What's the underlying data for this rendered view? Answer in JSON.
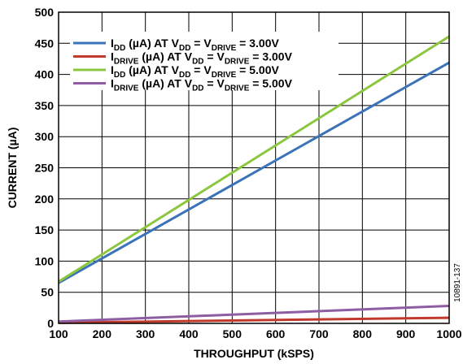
{
  "chart_data": {
    "type": "line",
    "xlabel": "THROUGHPUT (kSPS)",
    "ylabel": "CURRENT (µA)",
    "xlim": [
      100,
      1000
    ],
    "ylim": [
      0,
      500
    ],
    "x_ticks": [
      "100",
      "200",
      "300",
      "400",
      "500",
      "600",
      "700",
      "800",
      "900",
      "1000"
    ],
    "y_ticks": [
      "0",
      "50",
      "100",
      "150",
      "200",
      "250",
      "300",
      "350",
      "400",
      "450",
      "500"
    ],
    "grid": true,
    "legend_position": "top-left",
    "figure_id": "10891-137",
    "series": [
      {
        "name": "IDD (µA) AT VDD = VDRIVE = 3.00V",
        "legend": {
          "t1": "I",
          "s1": "DD",
          "t2": " (µA) AT V",
          "s2": "DD",
          "t3": " = V",
          "s3": "DRIVE",
          "t4": " = 3.00V"
        },
        "color": "#3b73b9",
        "x": [
          100,
          1000
        ],
        "y": [
          65,
          419
        ]
      },
      {
        "name": "IDRIVE (µA) AT VDD = VDRIVE = 3.00V",
        "legend": {
          "t1": "I",
          "s1": "DRIVE",
          "t2": " (µA) AT V",
          "s2": "DD",
          "t3": " = V",
          "s3": "DRIVE",
          "t4": " = 3.00V"
        },
        "color": "#c0392b",
        "x": [
          100,
          1000
        ],
        "y": [
          1,
          9
        ]
      },
      {
        "name": "IDD (µA) AT VDD = VDRIVE = 5.00V",
        "legend": {
          "t1": "I",
          "s1": "DD",
          "t2": " (µA) AT V",
          "s2": "DD",
          "t3": " = V",
          "s3": "DRIVE",
          "t4": " = 5.00V"
        },
        "color": "#8cc63f",
        "x": [
          100,
          1000
        ],
        "y": [
          67,
          461
        ]
      },
      {
        "name": "IDRIVE (µA) AT VDD = VDRIVE = 5.00V",
        "legend": {
          "t1": "I",
          "s1": "DRIVE",
          "t2": " (µA) AT V",
          "s2": "DD",
          "t3": " = V",
          "s3": "DRIVE",
          "t4": " = 5.00V"
        },
        "color": "#8e5ea2",
        "x": [
          100,
          1000
        ],
        "y": [
          3,
          28
        ]
      }
    ]
  }
}
